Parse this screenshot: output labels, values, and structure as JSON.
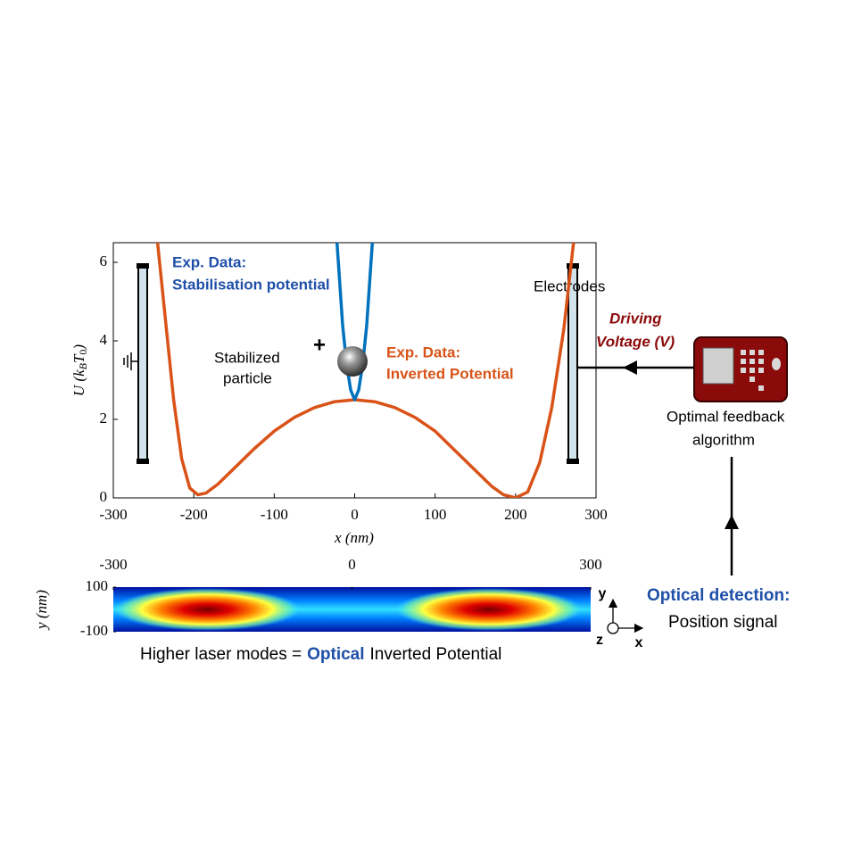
{
  "chart_data": [
    {
      "type": "line",
      "xlabel": "x (nm)",
      "ylabel_parts": [
        "U (k",
        "B",
        "T",
        "0",
        ")"
      ],
      "xlim": [
        -300,
        300
      ],
      "ylim": [
        0,
        6.5
      ],
      "xticks": [
        -300,
        -200,
        -100,
        0,
        100,
        200,
        300
      ],
      "yticks": [
        0,
        2,
        4,
        6
      ],
      "grid": false,
      "series": [
        {
          "color": "#d95319",
          "x": [
            -245,
            -235,
            -225,
            -215,
            -205,
            -195,
            -185,
            -170,
            -150,
            -125,
            -100,
            -75,
            -50,
            -25,
            0,
            25,
            50,
            75,
            100,
            125,
            150,
            170,
            185,
            200,
            215,
            230,
            245,
            260,
            272
          ],
          "values": [
            6.5,
            4.5,
            2.5,
            1.0,
            0.25,
            0.08,
            0.12,
            0.35,
            0.75,
            1.25,
            1.7,
            2.05,
            2.3,
            2.45,
            2.5,
            2.45,
            2.3,
            2.05,
            1.7,
            1.2,
            0.7,
            0.3,
            0.08,
            0.0,
            0.15,
            0.9,
            2.3,
            4.3,
            6.5
          ]
        },
        {
          "color": "#0072bd",
          "x": [
            -22,
            -15,
            -10,
            -5,
            0,
            5,
            10,
            15,
            22
          ],
          "values": [
            6.5,
            4.4,
            3.4,
            2.75,
            2.5,
            2.75,
            3.4,
            4.4,
            6.5
          ]
        }
      ]
    },
    {
      "type": "heatmap",
      "ylabel": "y (nm)",
      "xlim": [
        -300,
        300
      ],
      "ylim": [
        -100,
        100
      ],
      "xticks": [
        -300,
        0,
        300
      ],
      "yticks": [
        -100,
        100
      ]
    }
  ],
  "annotations": {
    "stabilisation": [
      "Exp. Data:",
      "Stabilisation potential"
    ],
    "inverted": [
      "Exp. Data:",
      "Inverted Potential"
    ],
    "particle": [
      "Stabilized",
      "particle"
    ],
    "plus": "+",
    "electrodes": "Electrodes",
    "driving": [
      "Driving",
      "Voltage (V)"
    ],
    "feedback": [
      "Optimal feedback",
      "algorithm"
    ],
    "detection": [
      "Optical detection:",
      "Position signal"
    ],
    "caption": [
      "Higher laser modes =",
      "Optical",
      "Inverted Potential"
    ],
    "axes_glyph": [
      "y",
      "z",
      "x"
    ]
  }
}
